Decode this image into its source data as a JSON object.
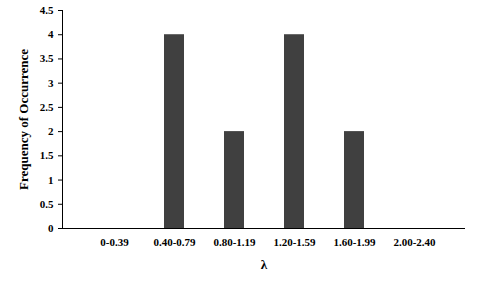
{
  "chart_data": {
    "type": "bar",
    "categories": [
      "0-0.39",
      "0.40-0.79",
      "0.80-1.19",
      "1.20-1.59",
      "1.60-1.99",
      "2.00-2.40"
    ],
    "values": [
      0,
      4,
      2,
      4,
      2,
      0
    ],
    "color": "#404040",
    "x_label": "λ",
    "y_label": "Frequency of Occurrence",
    "ylim": [
      0,
      4.5
    ],
    "yticks": [
      0,
      0.5,
      1,
      1.5,
      2,
      2.5,
      3,
      3.5,
      4,
      4.5
    ],
    "grid": false
  }
}
